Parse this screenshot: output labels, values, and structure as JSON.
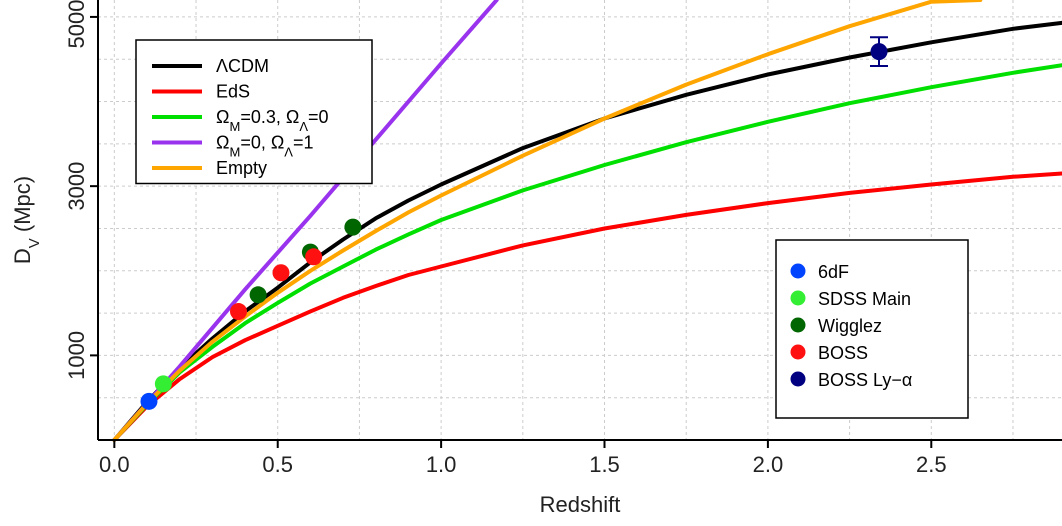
{
  "chart_data": {
    "type": "line",
    "xlabel": "Redshift",
    "ylabel": {
      "main": "D",
      "sub": "V",
      "unit": " (Mpc)"
    },
    "xlim": [
      -0.05,
      2.9
    ],
    "ylim": [
      0,
      5200
    ],
    "x_ticks": [
      {
        "v": 0.0,
        "label": "0.0"
      },
      {
        "v": 0.5,
        "label": "0.5"
      },
      {
        "v": 1.0,
        "label": "1.0"
      },
      {
        "v": 1.5,
        "label": "1.5"
      },
      {
        "v": 2.0,
        "label": "2.0"
      },
      {
        "v": 2.5,
        "label": "2.5"
      }
    ],
    "x_grid": [
      0.25,
      0.75,
      1.25,
      1.75,
      2.25,
      2.75
    ],
    "y_ticks": [
      {
        "v": 1000,
        "label": "1000"
      },
      {
        "v": 3000,
        "label": "3000"
      },
      {
        "v": 5000,
        "label": "5000"
      }
    ],
    "y_grid": [
      500,
      1000,
      1500,
      2000,
      2500,
      3000,
      3500,
      4000,
      4500,
      5000
    ],
    "grid": true,
    "series": [
      {
        "name": "ΛCDM",
        "label_html": "ΛCDM",
        "color": "#000000",
        "x": [
          0,
          0.1,
          0.2,
          0.3,
          0.4,
          0.5,
          0.6,
          0.7,
          0.8,
          0.9,
          1.0,
          1.25,
          1.5,
          1.75,
          2.0,
          2.25,
          2.5,
          2.75,
          2.9
        ],
        "y": [
          0,
          450,
          850,
          1200,
          1520,
          1800,
          2100,
          2370,
          2620,
          2830,
          3020,
          3450,
          3800,
          4080,
          4320,
          4520,
          4700,
          4860,
          4930
        ]
      },
      {
        "name": "EdS",
        "label_html": "EdS",
        "color": "#ff0000",
        "x": [
          0,
          0.1,
          0.2,
          0.3,
          0.4,
          0.5,
          0.6,
          0.7,
          0.8,
          0.9,
          1.0,
          1.25,
          1.5,
          1.75,
          2.0,
          2.25,
          2.5,
          2.75,
          2.9
        ],
        "y": [
          0,
          400,
          720,
          980,
          1180,
          1350,
          1520,
          1680,
          1820,
          1950,
          2050,
          2300,
          2500,
          2660,
          2800,
          2920,
          3020,
          3110,
          3150
        ]
      },
      {
        "name": "ΩM=0.3, ΩΛ=0",
        "label_html": "Ω<tspan baseline-shift=\"sub\" font-size=\"13\">M</tspan>=0.3, Ω<tspan baseline-shift=\"sub\" font-size=\"13\">Λ</tspan>=0",
        "color": "#00e000",
        "x": [
          0,
          0.1,
          0.2,
          0.3,
          0.4,
          0.5,
          0.6,
          0.7,
          0.8,
          0.9,
          1.0,
          1.25,
          1.5,
          1.75,
          2.0,
          2.25,
          2.5,
          2.75,
          2.9
        ],
        "y": [
          0,
          420,
          800,
          1100,
          1380,
          1620,
          1850,
          2050,
          2250,
          2430,
          2600,
          2950,
          3250,
          3520,
          3760,
          3980,
          4170,
          4340,
          4430
        ]
      },
      {
        "name": "ΩM=0, ΩΛ=1",
        "label_html": "Ω<tspan baseline-shift=\"sub\" font-size=\"13\">M</tspan>=0, Ω<tspan baseline-shift=\"sub\" font-size=\"13\">Λ</tspan>=1",
        "color": "#9933ee",
        "x": [
          0,
          0.2,
          0.4,
          0.6,
          0.8,
          1.0,
          1.17
        ],
        "y": [
          0,
          870,
          1780,
          2650,
          3550,
          4450,
          5200
        ]
      },
      {
        "name": "Empty",
        "label_html": "Empty",
        "color": "#ffa500",
        "x": [
          0,
          0.1,
          0.2,
          0.3,
          0.4,
          0.5,
          0.6,
          0.7,
          0.8,
          0.9,
          1.0,
          1.25,
          1.5,
          1.75,
          2.0,
          2.25,
          2.5,
          2.65
        ],
        "y": [
          0,
          430,
          820,
          1160,
          1460,
          1740,
          2000,
          2240,
          2470,
          2690,
          2890,
          3360,
          3800,
          4200,
          4560,
          4890,
          5180,
          5200
        ]
      }
    ],
    "points": [
      {
        "name": "6dF",
        "color": "#0044ff",
        "data": [
          {
            "x": 0.106,
            "y": 457
          }
        ]
      },
      {
        "name": "SDSS Main",
        "color": "#33ee33",
        "data": [
          {
            "x": 0.15,
            "y": 664
          }
        ]
      },
      {
        "name": "Wigglez",
        "color": "#006600",
        "data": [
          {
            "x": 0.44,
            "y": 1716
          },
          {
            "x": 0.6,
            "y": 2221
          },
          {
            "x": 0.73,
            "y": 2516
          }
        ]
      },
      {
        "name": "BOSS",
        "color": "#ff1111",
        "data": [
          {
            "x": 0.38,
            "y": 1518
          },
          {
            "x": 0.51,
            "y": 1977
          },
          {
            "x": 0.61,
            "y": 2165
          }
        ]
      },
      {
        "name": "BOSS Ly−α",
        "label_html": "BOSS Ly−α",
        "color": "#000080",
        "data": [
          {
            "x": 2.34,
            "y": 4590,
            "err": 170
          }
        ]
      }
    ],
    "lines_legend": {
      "placement": "top-left"
    },
    "points_legend": {
      "placement": "bottom-right"
    }
  }
}
